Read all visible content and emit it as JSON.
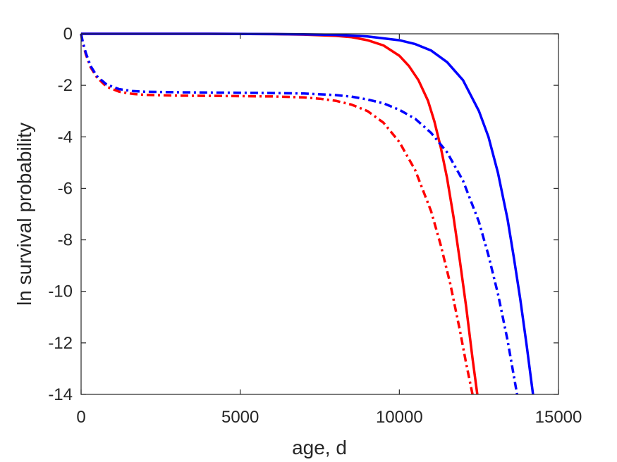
{
  "chart_data": {
    "type": "line",
    "xlabel": "age, d",
    "ylabel": "ln survival probability",
    "xlim": [
      0,
      15000
    ],
    "ylim": [
      -14,
      0
    ],
    "xticks": [
      0,
      5000,
      10000,
      15000
    ],
    "yticks": [
      0,
      -2,
      -4,
      -6,
      -8,
      -10,
      -12,
      -14
    ],
    "xtick_labels": [
      "0",
      "5000",
      "10000",
      "15000"
    ],
    "ytick_labels": [
      "0",
      "-2",
      "-4",
      "-6",
      "-8",
      "-10",
      "-12",
      "-14"
    ],
    "grid": false,
    "box": true,
    "series": [
      {
        "color": "#ff0000",
        "style": "solid",
        "x": [
          0,
          2000,
          4000,
          6000,
          7000,
          8000,
          8500,
          9000,
          9500,
          10000,
          10300,
          10600,
          10900,
          11100,
          11300,
          11500,
          11700,
          11900,
          12100,
          12300,
          12450
        ],
        "y": [
          0,
          0,
          0,
          -0.01,
          -0.03,
          -0.08,
          -0.13,
          -0.25,
          -0.45,
          -0.85,
          -1.25,
          -1.8,
          -2.6,
          -3.4,
          -4.4,
          -5.6,
          -7.1,
          -8.8,
          -10.6,
          -12.6,
          -14
        ]
      },
      {
        "color": "#0000ff",
        "style": "solid",
        "x": [
          0,
          2000,
          4000,
          6000,
          7000,
          8000,
          9000,
          10000,
          10500,
          11000,
          11500,
          12000,
          12500,
          12800,
          13100,
          13400,
          13600,
          13800,
          14000,
          14200
        ],
        "y": [
          0,
          0,
          0,
          -0.01,
          -0.02,
          -0.04,
          -0.1,
          -0.25,
          -0.4,
          -0.65,
          -1.1,
          -1.8,
          -3.0,
          -4.0,
          -5.4,
          -7.2,
          -8.7,
          -10.3,
          -12.1,
          -14
        ]
      },
      {
        "color": "#ff0000",
        "style": "dashdot",
        "x": [
          0,
          50,
          150,
          300,
          500,
          800,
          1200,
          1600,
          2000,
          3000,
          4000,
          5000,
          6000,
          7000,
          7500,
          8000,
          8500,
          9000,
          9500,
          10000,
          10500,
          11000,
          11300,
          11600,
          11900,
          12100,
          12300
        ],
        "y": [
          0,
          -0.35,
          -0.8,
          -1.3,
          -1.7,
          -2.05,
          -2.25,
          -2.33,
          -2.37,
          -2.4,
          -2.41,
          -2.42,
          -2.43,
          -2.47,
          -2.52,
          -2.6,
          -2.75,
          -3.0,
          -3.45,
          -4.2,
          -5.3,
          -6.9,
          -8.2,
          -9.7,
          -11.5,
          -12.8,
          -14
        ]
      },
      {
        "color": "#0000ff",
        "style": "dashdot",
        "x": [
          0,
          50,
          150,
          300,
          500,
          800,
          1200,
          1600,
          2000,
          3000,
          4000,
          5000,
          6000,
          7000,
          8000,
          8500,
          9000,
          9500,
          10000,
          10500,
          11000,
          11500,
          12000,
          12500,
          12800,
          13100,
          13400,
          13700
        ],
        "y": [
          0,
          -0.3,
          -0.75,
          -1.25,
          -1.65,
          -1.97,
          -2.15,
          -2.22,
          -2.25,
          -2.27,
          -2.28,
          -2.29,
          -2.3,
          -2.32,
          -2.38,
          -2.44,
          -2.55,
          -2.7,
          -2.95,
          -3.3,
          -3.85,
          -4.6,
          -5.7,
          -7.3,
          -8.6,
          -10.1,
          -11.9,
          -14
        ]
      }
    ]
  }
}
